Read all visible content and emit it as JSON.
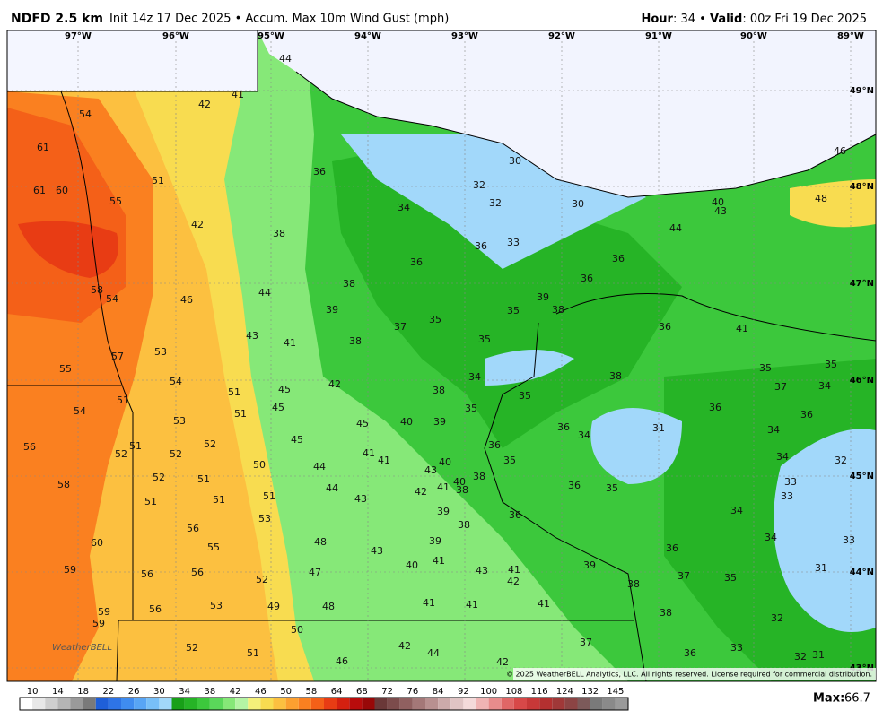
{
  "header": {
    "title": "NDFD 2.5 km",
    "subtitle": "Init 14z 17 Dec 2025 • Accum. Max 10m Wind Gust (mph)",
    "hour_label": "Hour",
    "hour_text": ": 34 •",
    "valid_label": "Valid",
    "valid_text": ": 00z Fri 19 Dec 2025"
  },
  "map": {
    "longitudes": [
      "97°W",
      "96°W",
      "95°W",
      "94°W",
      "93°W",
      "92°W",
      "91°W",
      "90°W",
      "89°W"
    ],
    "latitudes": [
      "49°N",
      "48°N",
      "47°N",
      "46°N",
      "45°N",
      "44°N",
      "43°N"
    ],
    "values": [
      44,
      41,
      42,
      54,
      61,
      51,
      61,
      60,
      55,
      42,
      38,
      36,
      34,
      32,
      32,
      30,
      30,
      46,
      48,
      40,
      43,
      44,
      36,
      33,
      36,
      36,
      36,
      58,
      54,
      46,
      44,
      38,
      39,
      39,
      38,
      35,
      35,
      37,
      36,
      41,
      43,
      41,
      38,
      35,
      57,
      53,
      55,
      54,
      42,
      45,
      51,
      38,
      34,
      38,
      35,
      35,
      37,
      34,
      51,
      54,
      51,
      45,
      53,
      45,
      40,
      39,
      35,
      35,
      36,
      36,
      56,
      51,
      52,
      52,
      52,
      45,
      41,
      41,
      36,
      36,
      34,
      31,
      34,
      50,
      44,
      43,
      40,
      35,
      34,
      32,
      52,
      51,
      58,
      44,
      42,
      41,
      40,
      38,
      38,
      36,
      35,
      33,
      33,
      51,
      51,
      51,
      43,
      39,
      36,
      34,
      53,
      38,
      60,
      56,
      55,
      48,
      43,
      39,
      36,
      34,
      33,
      56,
      56,
      59,
      52,
      47,
      40,
      41,
      43,
      41,
      42,
      39,
      38,
      37,
      35,
      31,
      59,
      59,
      56,
      53,
      49,
      48,
      41,
      41,
      41,
      38,
      32,
      50,
      52,
      51,
      42,
      44,
      46,
      42,
      37,
      36,
      33,
      32,
      31
    ],
    "credit": "WeatherBELL",
    "copyright": "© 2025 WeatherBELL Analytics, LLC. All rights reserved. License required for commercial distribution."
  },
  "colorbar": {
    "labels": [
      10,
      14,
      18,
      22,
      26,
      30,
      34,
      38,
      42,
      46,
      50,
      58,
      64,
      68,
      72,
      76,
      84,
      92,
      100,
      108,
      116,
      124,
      132,
      145
    ],
    "colors": [
      "#ffffff",
      "#e8e8e8",
      "#cfcfcf",
      "#b5b5b5",
      "#9a9a9a",
      "#7a7a7a",
      "#1f5fd8",
      "#2e74e6",
      "#3f8cf0",
      "#58a5f5",
      "#78bff8",
      "#a2d8fa",
      "#18a018",
      "#26b426",
      "#3cc83c",
      "#5ad85a",
      "#86e878",
      "#b4f4a4",
      "#f4f07a",
      "#f8dc50",
      "#fcc040",
      "#fca030",
      "#fa8020",
      "#f46018",
      "#e83c14",
      "#d42010",
      "#b80c0c",
      "#980808",
      "#6a3838",
      "#7c4c4c",
      "#906060",
      "#a47878",
      "#b89090",
      "#ccaaaa",
      "#e0c4c4",
      "#f4dada",
      "#f0b4b4",
      "#e88c8c",
      "#e06666",
      "#d84848",
      "#c83838",
      "#b43030",
      "#a03838",
      "#8c4444",
      "#7c5a5a",
      "#7a7a7a",
      "#8a8a8a",
      "#9a9a9a"
    ],
    "max_label": "Max:",
    "max_value": 66.7
  }
}
